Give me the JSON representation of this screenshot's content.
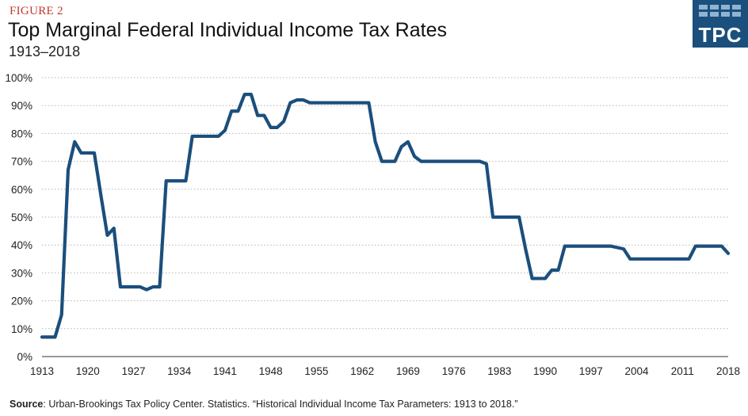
{
  "header": {
    "figure_label": "FIGURE 2",
    "title": "Top Marginal Federal Individual Income Tax Rates",
    "subtitle": "1913–2018"
  },
  "logo": {
    "text": "TPC",
    "color": "#1b4f7c"
  },
  "footer": {
    "source_label": "Source",
    "source_text": ": Urban-Brookings Tax Policy Center. Statistics. “Historical Individual Income Tax Parameters: 1913 to 2018.”"
  },
  "chart_data": {
    "type": "line",
    "title": "Top Marginal Federal Individual Income Tax Rates",
    "subtitle": "1913–2018",
    "xlabel": "",
    "ylabel": "",
    "xlim": [
      1913,
      2018
    ],
    "ylim": [
      0,
      100
    ],
    "x_ticks": [
      1913,
      1920,
      1927,
      1934,
      1941,
      1948,
      1955,
      1962,
      1969,
      1976,
      1983,
      1990,
      1997,
      2004,
      2011,
      2018
    ],
    "y_ticks": [
      "0%",
      "10%",
      "20%",
      "30%",
      "40%",
      "50%",
      "60%",
      "70%",
      "80%",
      "90%",
      "100%"
    ],
    "grid": "horizontal-dotted",
    "line_color": "#1b4f7c",
    "series": [
      {
        "name": "",
        "x": [
          1913,
          1914,
          1915,
          1916,
          1917,
          1918,
          1919,
          1920,
          1921,
          1922,
          1923,
          1924,
          1925,
          1926,
          1927,
          1928,
          1929,
          1930,
          1931,
          1932,
          1933,
          1934,
          1935,
          1936,
          1937,
          1938,
          1939,
          1940,
          1941,
          1942,
          1943,
          1944,
          1945,
          1946,
          1947,
          1948,
          1949,
          1950,
          1951,
          1952,
          1953,
          1954,
          1955,
          1956,
          1957,
          1958,
          1959,
          1960,
          1961,
          1962,
          1963,
          1964,
          1965,
          1966,
          1967,
          1968,
          1969,
          1970,
          1971,
          1972,
          1973,
          1974,
          1975,
          1976,
          1977,
          1978,
          1979,
          1980,
          1981,
          1982,
          1983,
          1984,
          1985,
          1986,
          1987,
          1988,
          1989,
          1990,
          1991,
          1992,
          1993,
          1994,
          1995,
          1996,
          1997,
          1998,
          1999,
          2000,
          2001,
          2002,
          2003,
          2004,
          2005,
          2006,
          2007,
          2008,
          2009,
          2010,
          2011,
          2012,
          2013,
          2014,
          2015,
          2016,
          2017,
          2018
        ],
        "values": [
          7,
          7,
          7,
          15,
          67,
          77,
          73,
          73,
          73,
          58,
          43.5,
          46,
          25,
          25,
          25,
          25,
          24,
          25,
          25,
          63,
          63,
          63,
          63,
          79,
          79,
          79,
          79,
          79,
          81.1,
          88,
          88,
          94,
          94,
          86.45,
          86.45,
          82.13,
          82.13,
          84.36,
          91,
          92,
          92,
          91,
          91,
          91,
          91,
          91,
          91,
          91,
          91,
          91,
          91,
          77,
          70,
          70,
          70,
          75.25,
          77,
          71.75,
          70,
          70,
          70,
          70,
          70,
          70,
          70,
          70,
          70,
          70,
          69.13,
          50,
          50,
          50,
          50,
          50,
          38.5,
          28,
          28,
          28,
          31,
          31,
          39.6,
          39.6,
          39.6,
          39.6,
          39.6,
          39.6,
          39.6,
          39.6,
          39.1,
          38.6,
          35,
          35,
          35,
          35,
          35,
          35,
          35,
          35,
          35,
          35,
          39.6,
          39.6,
          39.6,
          39.6,
          39.6,
          37
        ]
      }
    ]
  }
}
